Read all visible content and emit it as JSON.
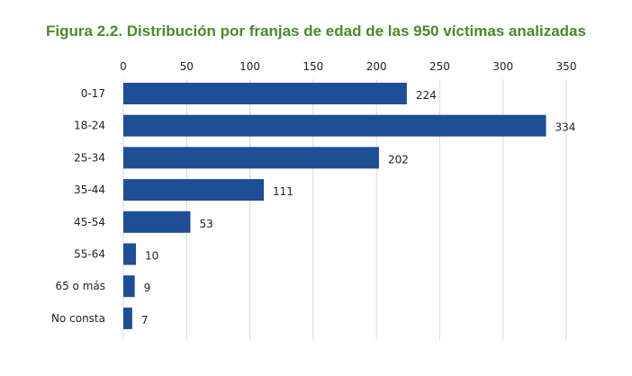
{
  "title": "Figura 2.2. Distribución por franjas de edad de las 950 víctimas analizadas",
  "colors": {
    "title": "#4a8a2c",
    "bar": "#1f4e96",
    "grid": "#d9d9d9",
    "text": "#222222"
  },
  "chart_data": {
    "type": "bar",
    "orientation": "horizontal",
    "title": "Figura 2.2. Distribución por franjas de edad de las 950 víctimas analizadas",
    "categories": [
      "0-17",
      "18-24",
      "25-34",
      "35-44",
      "45-54",
      "55-64",
      "65 o más",
      "No consta"
    ],
    "values": [
      224,
      334,
      202,
      111,
      53,
      10,
      9,
      7
    ],
    "xlim": [
      0,
      350
    ],
    "xticks": [
      0,
      50,
      100,
      150,
      200,
      250,
      300,
      350
    ],
    "axis_position": "top",
    "grid": true,
    "legend": "none"
  }
}
